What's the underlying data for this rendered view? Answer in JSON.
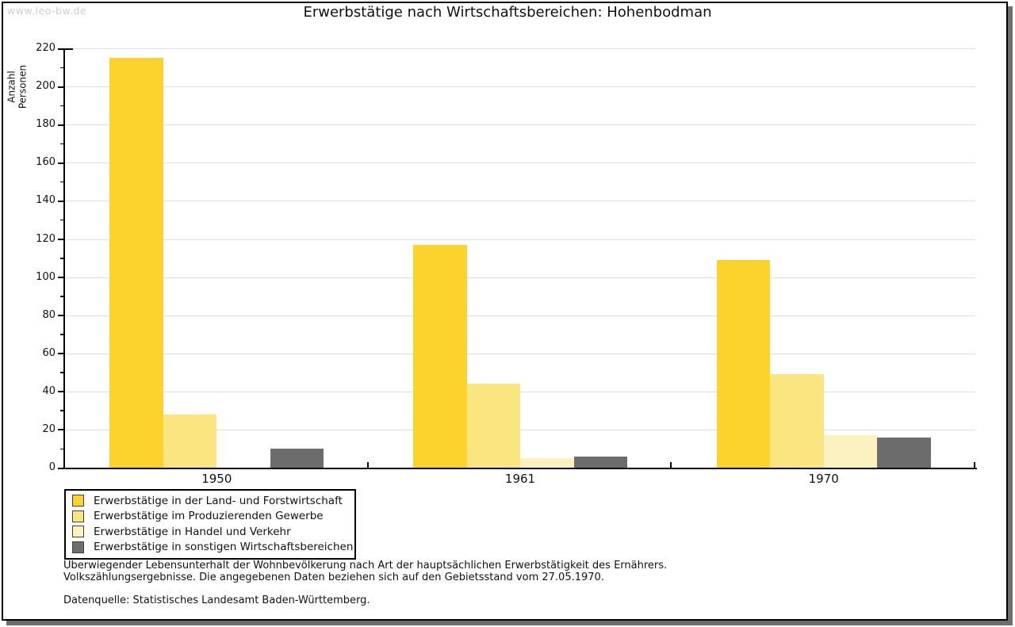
{
  "watermark": "www.leo-bw.de",
  "title": "Erwerbstätige nach Wirtschaftsbereichen: Hohenbodman",
  "footer": {
    "line1": "Überwiegender Lebensunterhalt der Wohnbevölkerung nach Art der hauptsächlichen Erwerbstätigkeit des Ernährers.",
    "line2": "Volkszählungsergebnisse. Die angegebenen Daten beziehen sich auf den Gebietsstand vom 27.05.1970.",
    "source": "Datenquelle: Statistisches Landesamt Baden-Württemberg."
  },
  "colors": {
    "grid": "#dcdcdc",
    "axis": "#000000",
    "watermark": "#cccccc",
    "frame_shadow": "#6e6e6e"
  },
  "chart_data": {
    "type": "bar",
    "title": "Erwerbstätige nach Wirtschaftsbereichen: Hohenbodman",
    "xlabel": "",
    "ylabel": "Anzahl Personen",
    "categories": [
      "1950",
      "1961",
      "1970"
    ],
    "series": [
      {
        "name": "Erwerbstätige in der Land- und Forstwirtschaft",
        "color": "#fcd32d",
        "values": [
          215,
          117,
          109
        ]
      },
      {
        "name": "Erwerbstätige im Produzierenden Gewerbe",
        "color": "#fae581",
        "values": [
          28,
          44,
          49
        ]
      },
      {
        "name": "Erwerbstätige in Handel und Verkehr",
        "color": "#fbf2c0",
        "values": [
          0,
          5,
          17
        ]
      },
      {
        "name": "Erwerbstätige in sonstigen Wirtschaftsbereichen",
        "color": "#6c6c6c",
        "values": [
          10,
          6,
          16
        ]
      }
    ],
    "ylim": [
      0,
      220
    ],
    "ytick_step": 20,
    "y_minor_tick_step": 10,
    "grid": true,
    "legend_position": "bottom-left"
  }
}
